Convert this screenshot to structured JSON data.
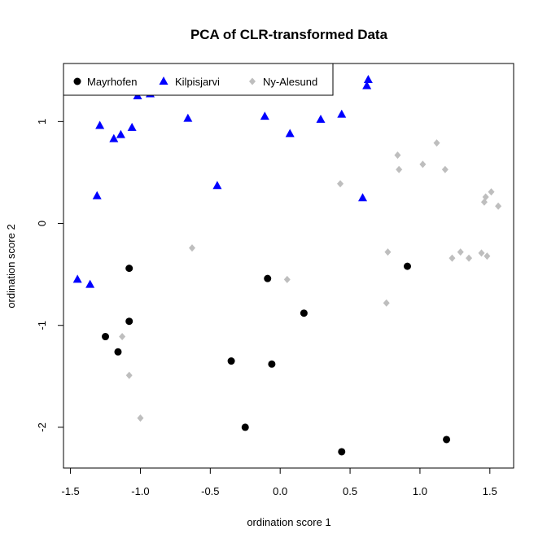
{
  "chart_data": {
    "type": "scatter",
    "title": "PCA of CLR-transformed Data",
    "xlabel": "ordination score 1",
    "ylabel": "ordination score 2",
    "xlim": [
      -1.55,
      1.67
    ],
    "ylim": [
      -2.4,
      1.57
    ],
    "x_ticks": [
      -1.5,
      -1.0,
      -0.5,
      0.0,
      0.5,
      1.0,
      1.5
    ],
    "x_tick_labels": [
      "-1.5",
      "-1.0",
      "-0.5",
      "0.0",
      "0.5",
      "1.0",
      "1.5"
    ],
    "y_ticks": [
      -2,
      -1,
      0,
      1
    ],
    "y_tick_labels": [
      "-2",
      "-1",
      "0",
      "1"
    ],
    "grid": false,
    "legend_position": "top-left",
    "series": [
      {
        "name": "Mayrhofen",
        "marker": "circle",
        "color": "#000000",
        "points": [
          [
            -1.08,
            -0.44
          ],
          [
            -1.08,
            -0.96
          ],
          [
            -1.25,
            -1.11
          ],
          [
            -1.16,
            -1.26
          ],
          [
            -0.35,
            -1.35
          ],
          [
            -0.25,
            -2.0
          ],
          [
            -0.09,
            -0.54
          ],
          [
            -0.06,
            -1.38
          ],
          [
            0.17,
            -0.88
          ],
          [
            0.44,
            -2.24
          ],
          [
            0.91,
            -0.42
          ],
          [
            1.19,
            -2.12
          ]
        ]
      },
      {
        "name": "Kilpisjarvi",
        "marker": "triangle",
        "color": "#0000ff",
        "points": [
          [
            -1.45,
            -0.55
          ],
          [
            -1.36,
            -0.6
          ],
          [
            -1.31,
            0.27
          ],
          [
            -1.29,
            0.96
          ],
          [
            -1.19,
            0.83
          ],
          [
            -1.14,
            0.87
          ],
          [
            -1.06,
            0.94
          ],
          [
            -1.02,
            1.25
          ],
          [
            -0.93,
            1.27
          ],
          [
            -0.66,
            1.03
          ],
          [
            -0.45,
            0.37
          ],
          [
            -0.11,
            1.05
          ],
          [
            0.07,
            0.88
          ],
          [
            0.29,
            1.02
          ],
          [
            0.44,
            1.07
          ],
          [
            0.59,
            0.25
          ],
          [
            0.62,
            1.35
          ],
          [
            0.63,
            1.41
          ]
        ]
      },
      {
        "name": "Ny-Alesund",
        "marker": "diamond",
        "color": "#bebebe",
        "points": [
          [
            -1.13,
            -1.11
          ],
          [
            -1.08,
            -1.49
          ],
          [
            -1.0,
            -1.91
          ],
          [
            -0.63,
            -0.24
          ],
          [
            0.05,
            -0.55
          ],
          [
            0.43,
            0.39
          ],
          [
            0.76,
            -0.78
          ],
          [
            0.77,
            -0.28
          ],
          [
            0.84,
            0.67
          ],
          [
            0.85,
            0.53
          ],
          [
            1.02,
            0.58
          ],
          [
            1.12,
            0.79
          ],
          [
            1.18,
            0.53
          ],
          [
            1.23,
            -0.34
          ],
          [
            1.29,
            -0.28
          ],
          [
            1.35,
            -0.34
          ],
          [
            1.44,
            -0.29
          ],
          [
            1.46,
            0.21
          ],
          [
            1.47,
            0.26
          ],
          [
            1.48,
            -0.32
          ],
          [
            1.51,
            0.31
          ],
          [
            1.56,
            0.17
          ]
        ]
      }
    ]
  }
}
